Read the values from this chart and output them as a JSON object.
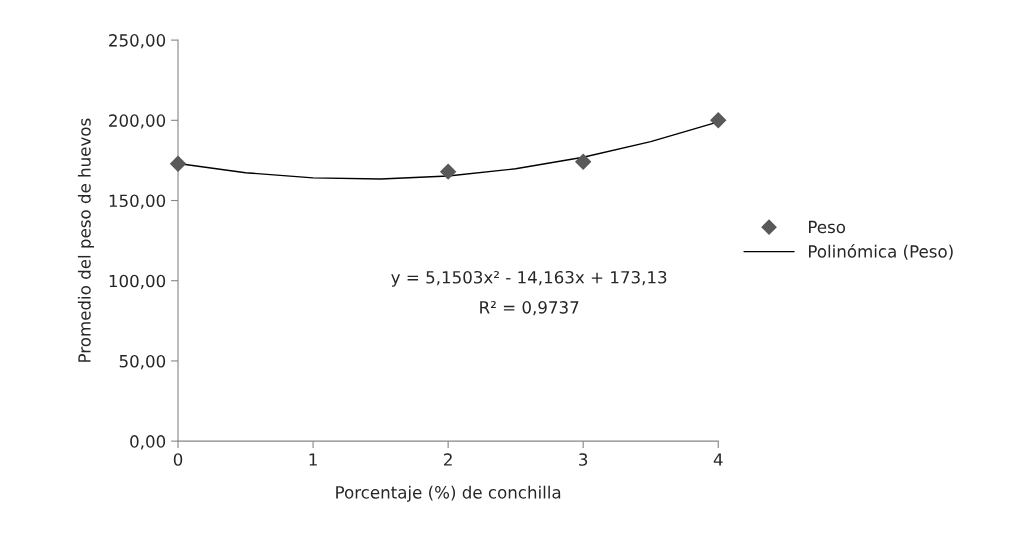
{
  "chart_data": {
    "type": "scatter",
    "xlabel": "Porcentaje (%) de conchilla",
    "ylabel": "Promedio del peso de huevos",
    "xlim": [
      0,
      4
    ],
    "xticks": [
      0,
      1,
      2,
      3,
      4
    ],
    "ylim": [
      0,
      250
    ],
    "yticks": [
      {
        "value": 0,
        "label": "0,00"
      },
      {
        "value": 50,
        "label": "50,00"
      },
      {
        "value": 100,
        "label": "100,00"
      },
      {
        "value": 150,
        "label": "150,00"
      },
      {
        "value": 200,
        "label": "200,00"
      },
      {
        "value": 250,
        "label": "250,00"
      }
    ],
    "grid": false,
    "legend": "right",
    "series": [
      {
        "name": "Peso",
        "marker": "diamond",
        "color": "#595959",
        "x": [
          0,
          2,
          3,
          4
        ],
        "values": [
          172.9,
          168,
          174.2,
          200
        ]
      },
      {
        "name": "Polinómica (Peso)",
        "type": "line",
        "marker": "none",
        "line_style": "solid",
        "color": "#000000",
        "x": [
          0,
          0.5,
          1,
          1.5,
          2,
          2.5,
          3,
          3.5,
          4
        ],
        "values": [
          173.1,
          167.3,
          164.1,
          163.4,
          165.3,
          169.8,
          177.0,
          186.7,
          199.0
        ]
      }
    ],
    "annotations": [
      "y = 5,1503x² - 14,163x + 173,13",
      "R² = 0,9737"
    ]
  }
}
